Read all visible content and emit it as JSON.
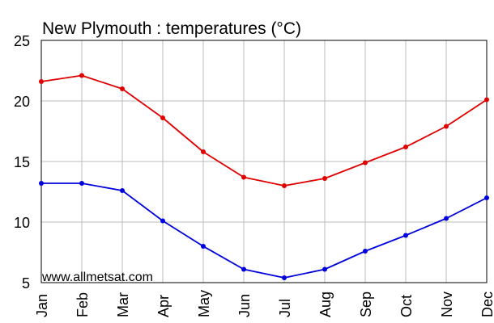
{
  "chart_data": {
    "type": "line",
    "title": "New Plymouth : temperatures (°C)",
    "watermark": "www.allmetsat.com",
    "categories": [
      "Jan",
      "Feb",
      "Mar",
      "Apr",
      "May",
      "Jun",
      "Jul",
      "Aug",
      "Sep",
      "Oct",
      "Nov",
      "Dec"
    ],
    "ylim": [
      5,
      25
    ],
    "yticks": [
      5,
      10,
      15,
      20,
      25
    ],
    "grid": true,
    "series": [
      {
        "color": "#e00000",
        "values": [
          21.6,
          22.1,
          21.0,
          18.6,
          15.8,
          13.7,
          13.0,
          13.6,
          14.9,
          16.2,
          17.9,
          20.1
        ]
      },
      {
        "color": "#0000dd",
        "values": [
          13.2,
          13.2,
          12.6,
          10.1,
          8.0,
          6.1,
          5.4,
          6.1,
          7.6,
          8.9,
          10.3,
          12.0
        ]
      }
    ],
    "colors": {
      "grid": "#bbbbbb",
      "axis": "#000000",
      "background": "#ffffff"
    }
  }
}
